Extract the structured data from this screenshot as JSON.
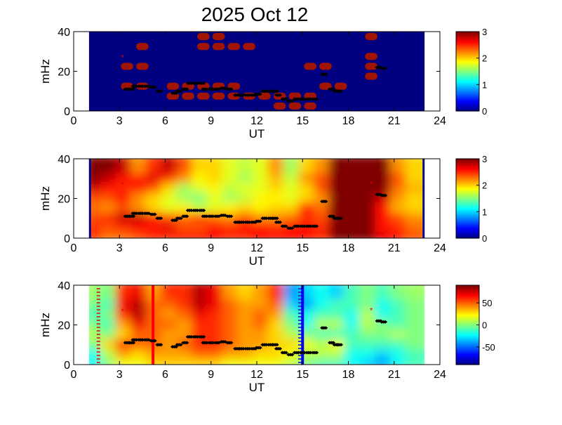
{
  "chart_data": {
    "type": "heatmap",
    "title": "2025 Oct 12",
    "panels": [
      {
        "name": "panel-1",
        "xlabel": "UT",
        "ylabel": "mHz",
        "xlim": [
          0,
          24
        ],
        "ylim": [
          0,
          40
        ],
        "xticks": [
          "0",
          "3",
          "6",
          "9",
          "12",
          "15",
          "18",
          "21",
          "24"
        ],
        "yticks": [
          "0",
          "20",
          "40"
        ],
        "clim": [
          0,
          3
        ],
        "colorbar_ticks": [
          "0",
          "1",
          "2",
          "3"
        ],
        "data_x_start": 1,
        "data_x_step": 1,
        "data_y_step": 5,
        "rows_low_to_high": [
          [
            0,
            0,
            0,
            0,
            0,
            0,
            0,
            0,
            0,
            0,
            0,
            0,
            3,
            3,
            3,
            0,
            0,
            0,
            0,
            0,
            0,
            0
          ],
          [
            0,
            0,
            0,
            0,
            0,
            3,
            3,
            3,
            3,
            3,
            3,
            3,
            3,
            3,
            3,
            0,
            0,
            0,
            0,
            0,
            0,
            0
          ],
          [
            0,
            0,
            3,
            3,
            0,
            3,
            3,
            3,
            3,
            3,
            0,
            0,
            0,
            0,
            0,
            3,
            3,
            0,
            0,
            0,
            0,
            0
          ],
          [
            0,
            0,
            0,
            0,
            0,
            0,
            0,
            0,
            0,
            0,
            0,
            0,
            0,
            0,
            0,
            0,
            0,
            0,
            3,
            0,
            0,
            0
          ],
          [
            0,
            0,
            3,
            3,
            0,
            0,
            0,
            0,
            0,
            0,
            0,
            0,
            0,
            0,
            3,
            3,
            0,
            0,
            3,
            0,
            0,
            0
          ],
          [
            0,
            0,
            0,
            0,
            0,
            0,
            0,
            0,
            0,
            0,
            0,
            0,
            0,
            0,
            0,
            0,
            0,
            0,
            3,
            0,
            0,
            0
          ],
          [
            0,
            0,
            0,
            3,
            0,
            0,
            0,
            3,
            3,
            3,
            3,
            0,
            0,
            0,
            0,
            0,
            0,
            0,
            0,
            0,
            0,
            0
          ],
          [
            0,
            0,
            0,
            0,
            0,
            0,
            0,
            3,
            3,
            0,
            0,
            0,
            0,
            0,
            0,
            0,
            0,
            0,
            3,
            0,
            0,
            0
          ]
        ],
        "blocky": true
      },
      {
        "name": "panel-2",
        "xlabel": "UT",
        "ylabel": "mHz",
        "xlim": [
          0,
          24
        ],
        "ylim": [
          0,
          40
        ],
        "xticks": [
          "0",
          "3",
          "6",
          "9",
          "12",
          "15",
          "18",
          "21",
          "24"
        ],
        "yticks": [
          "0",
          "20",
          "40"
        ],
        "clim": [
          0,
          3
        ],
        "colorbar_ticks": [
          "0",
          "1",
          "2",
          "3"
        ],
        "data_x_start": 1,
        "data_x_step": 1,
        "data_y_step": 5,
        "rows_low_to_high": [
          [
            2.5,
            2.3,
            2.3,
            2.4,
            2.5,
            2.5,
            2.6,
            2.6,
            2.6,
            2.5,
            2.5,
            2.6,
            2.6,
            2.6,
            2.6,
            2.5,
            3,
            3,
            3,
            2.7,
            2.6,
            2.4
          ],
          [
            2.5,
            2.4,
            2.5,
            2.6,
            2.6,
            2.7,
            2.4,
            2.4,
            2.6,
            2.5,
            2.6,
            2.6,
            2.5,
            2.6,
            2.6,
            2.5,
            3,
            3,
            3,
            2.6,
            2.5,
            2.3
          ],
          [
            2.4,
            2.5,
            2.8,
            2.8,
            2.5,
            2.4,
            2.3,
            2.4,
            2.3,
            2.2,
            2.4,
            2.2,
            2.2,
            2.3,
            2.5,
            2.4,
            3,
            3,
            3,
            2.6,
            2.4,
            2.2
          ],
          [
            2.3,
            2.2,
            2.4,
            2.2,
            2,
            1.8,
            1.9,
            1.7,
            1.8,
            1.9,
            2,
            1.9,
            2,
            2,
            2.6,
            2.3,
            3,
            3,
            3,
            2.6,
            2.1,
            2
          ],
          [
            2.4,
            2.4,
            2.6,
            2.2,
            2,
            1.8,
            1.6,
            1.5,
            1.8,
            1.6,
            1.7,
            1.9,
            1.9,
            1.8,
            2,
            2.2,
            3,
            3,
            3,
            2.8,
            2.2,
            2
          ],
          [
            2.8,
            2.6,
            2.5,
            2.6,
            2.4,
            2,
            1.6,
            1.8,
            1.9,
            1.7,
            1.8,
            1.8,
            2,
            1.8,
            2,
            2.4,
            3,
            3,
            3,
            3,
            2.3,
            2.1
          ],
          [
            3,
            2.8,
            2.6,
            2.5,
            2.7,
            2.5,
            2.2,
            1.9,
            2,
            1.8,
            1.6,
            1.8,
            2.1,
            1.7,
            2.2,
            2.4,
            3,
            3,
            3,
            3,
            2.4,
            2
          ],
          [
            3,
            3,
            2.8,
            2.2,
            2.5,
            2.8,
            2.4,
            2,
            2,
            1.8,
            1.7,
            1.8,
            2.2,
            1.6,
            2,
            2.2,
            3,
            3,
            3,
            3,
            2.2,
            2
          ]
        ],
        "blocky": false
      },
      {
        "name": "panel-3",
        "xlabel": "UT",
        "ylabel": "mHz",
        "xlim": [
          0,
          24
        ],
        "ylim": [
          0,
          40
        ],
        "xticks": [
          "0",
          "3",
          "6",
          "9",
          "12",
          "15",
          "18",
          "21",
          "24"
        ],
        "yticks": [
          "0",
          "20",
          "40"
        ],
        "clim": [
          -90,
          90
        ],
        "colorbar_ticks": [
          "-50",
          "0",
          "50"
        ],
        "colorbar_tick_values": [
          -50,
          0,
          50
        ],
        "data_x_start": 1,
        "data_x_step": 1,
        "data_y_step": 5,
        "rows_low_to_high": [
          [
            -20,
            0,
            20,
            20,
            30,
            30,
            30,
            30,
            30,
            20,
            20,
            20,
            20,
            10,
            0,
            -10,
            -10,
            -20,
            -30,
            -40,
            -20,
            -10
          ],
          [
            -20,
            10,
            40,
            30,
            40,
            40,
            40,
            50,
            50,
            40,
            40,
            30,
            30,
            20,
            10,
            10,
            10,
            -20,
            -20,
            -30,
            -20,
            -10
          ],
          [
            0,
            30,
            60,
            50,
            50,
            40,
            50,
            60,
            60,
            50,
            40,
            40,
            30,
            30,
            20,
            10,
            20,
            -10,
            -10,
            -10,
            -10,
            0
          ],
          [
            10,
            0,
            30,
            50,
            50,
            40,
            40,
            60,
            60,
            50,
            40,
            40,
            30,
            10,
            0,
            -10,
            -10,
            -10,
            0,
            0,
            10,
            0
          ],
          [
            0,
            -10,
            40,
            70,
            50,
            50,
            40,
            60,
            60,
            50,
            40,
            50,
            30,
            0,
            -20,
            10,
            10,
            -20,
            10,
            0,
            -10,
            0
          ],
          [
            -10,
            0,
            60,
            80,
            50,
            40,
            50,
            70,
            60,
            50,
            40,
            50,
            40,
            -10,
            -20,
            -10,
            -10,
            -20,
            10,
            -20,
            -10,
            0
          ],
          [
            0,
            -10,
            70,
            80,
            50,
            50,
            60,
            80,
            70,
            50,
            40,
            40,
            50,
            -30,
            -40,
            -20,
            -10,
            -10,
            0,
            -20,
            -10,
            0
          ],
          [
            5,
            0,
            60,
            70,
            40,
            60,
            60,
            80,
            70,
            40,
            30,
            40,
            60,
            -40,
            -30,
            -20,
            -30,
            -10,
            0,
            -10,
            0,
            5
          ]
        ],
        "blocky": false,
        "vertical_markers": [
          {
            "ut": 5.2,
            "color": "#ff0000"
          },
          {
            "ut": 15.0,
            "color": "#0000ff"
          }
        ]
      }
    ],
    "track_points_ut_mhz": [
      [
        3.5,
        11
      ],
      [
        3.8,
        11
      ],
      [
        4,
        12.5
      ],
      [
        4.4,
        12.5
      ],
      [
        4.8,
        12.5
      ],
      [
        5.2,
        12
      ],
      [
        5.6,
        10
      ],
      [
        6.6,
        9
      ],
      [
        6.9,
        10
      ],
      [
        7.3,
        11
      ],
      [
        7.6,
        14
      ],
      [
        8,
        14
      ],
      [
        8.4,
        14
      ],
      [
        8.6,
        11
      ],
      [
        9,
        11
      ],
      [
        9.4,
        11
      ],
      [
        9.8,
        11.5
      ],
      [
        10.2,
        11
      ],
      [
        10.7,
        8
      ],
      [
        11,
        8
      ],
      [
        11.4,
        8
      ],
      [
        11.8,
        8
      ],
      [
        12.1,
        8.5
      ],
      [
        12.5,
        10
      ],
      [
        12.9,
        10
      ],
      [
        13.2,
        10
      ],
      [
        13.4,
        8
      ],
      [
        13.8,
        6
      ],
      [
        14.2,
        5
      ],
      [
        14.6,
        6
      ],
      [
        15,
        6
      ],
      [
        15.4,
        6
      ],
      [
        15.8,
        6
      ],
      [
        16.4,
        18.5
      ],
      [
        16.9,
        11
      ],
      [
        17.2,
        10
      ],
      [
        17.4,
        10
      ],
      [
        20,
        22
      ],
      [
        20.3,
        21.5
      ]
    ],
    "red_marks_ut_mhz": [
      [
        3.2,
        27
      ],
      [
        19.5,
        27.5
      ]
    ]
  }
}
